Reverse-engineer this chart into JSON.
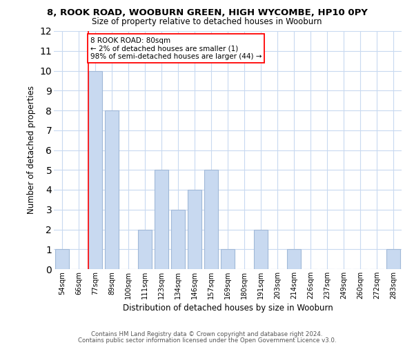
{
  "title1": "8, ROOK ROAD, WOOBURN GREEN, HIGH WYCOMBE, HP10 0PY",
  "title2": "Size of property relative to detached houses in Wooburn",
  "xlabel": "Distribution of detached houses by size in Wooburn",
  "ylabel": "Number of detached properties",
  "bin_labels": [
    "54sqm",
    "66sqm",
    "77sqm",
    "89sqm",
    "100sqm",
    "111sqm",
    "123sqm",
    "134sqm",
    "146sqm",
    "157sqm",
    "169sqm",
    "180sqm",
    "191sqm",
    "203sqm",
    "214sqm",
    "226sqm",
    "237sqm",
    "249sqm",
    "260sqm",
    "272sqm",
    "283sqm"
  ],
  "bar_heights": [
    1,
    0,
    10,
    8,
    0,
    2,
    5,
    3,
    4,
    5,
    1,
    0,
    2,
    0,
    1,
    0,
    0,
    0,
    0,
    0,
    1
  ],
  "bar_color": "#c8d9f0",
  "bar_edge_color": "#a0b8d8",
  "red_line_index": 2,
  "annotation_title": "8 ROOK ROAD: 80sqm",
  "annotation_line1": "← 2% of detached houses are smaller (1)",
  "annotation_line2": "98% of semi-detached houses are larger (44) →",
  "ylim": [
    0,
    12
  ],
  "yticks": [
    0,
    1,
    2,
    3,
    4,
    5,
    6,
    7,
    8,
    9,
    10,
    11,
    12
  ],
  "footer1": "Contains HM Land Registry data © Crown copyright and database right 2024.",
  "footer2": "Contains public sector information licensed under the Open Government Licence v3.0.",
  "bg_color": "#ffffff",
  "grid_color": "#c8d9f0"
}
